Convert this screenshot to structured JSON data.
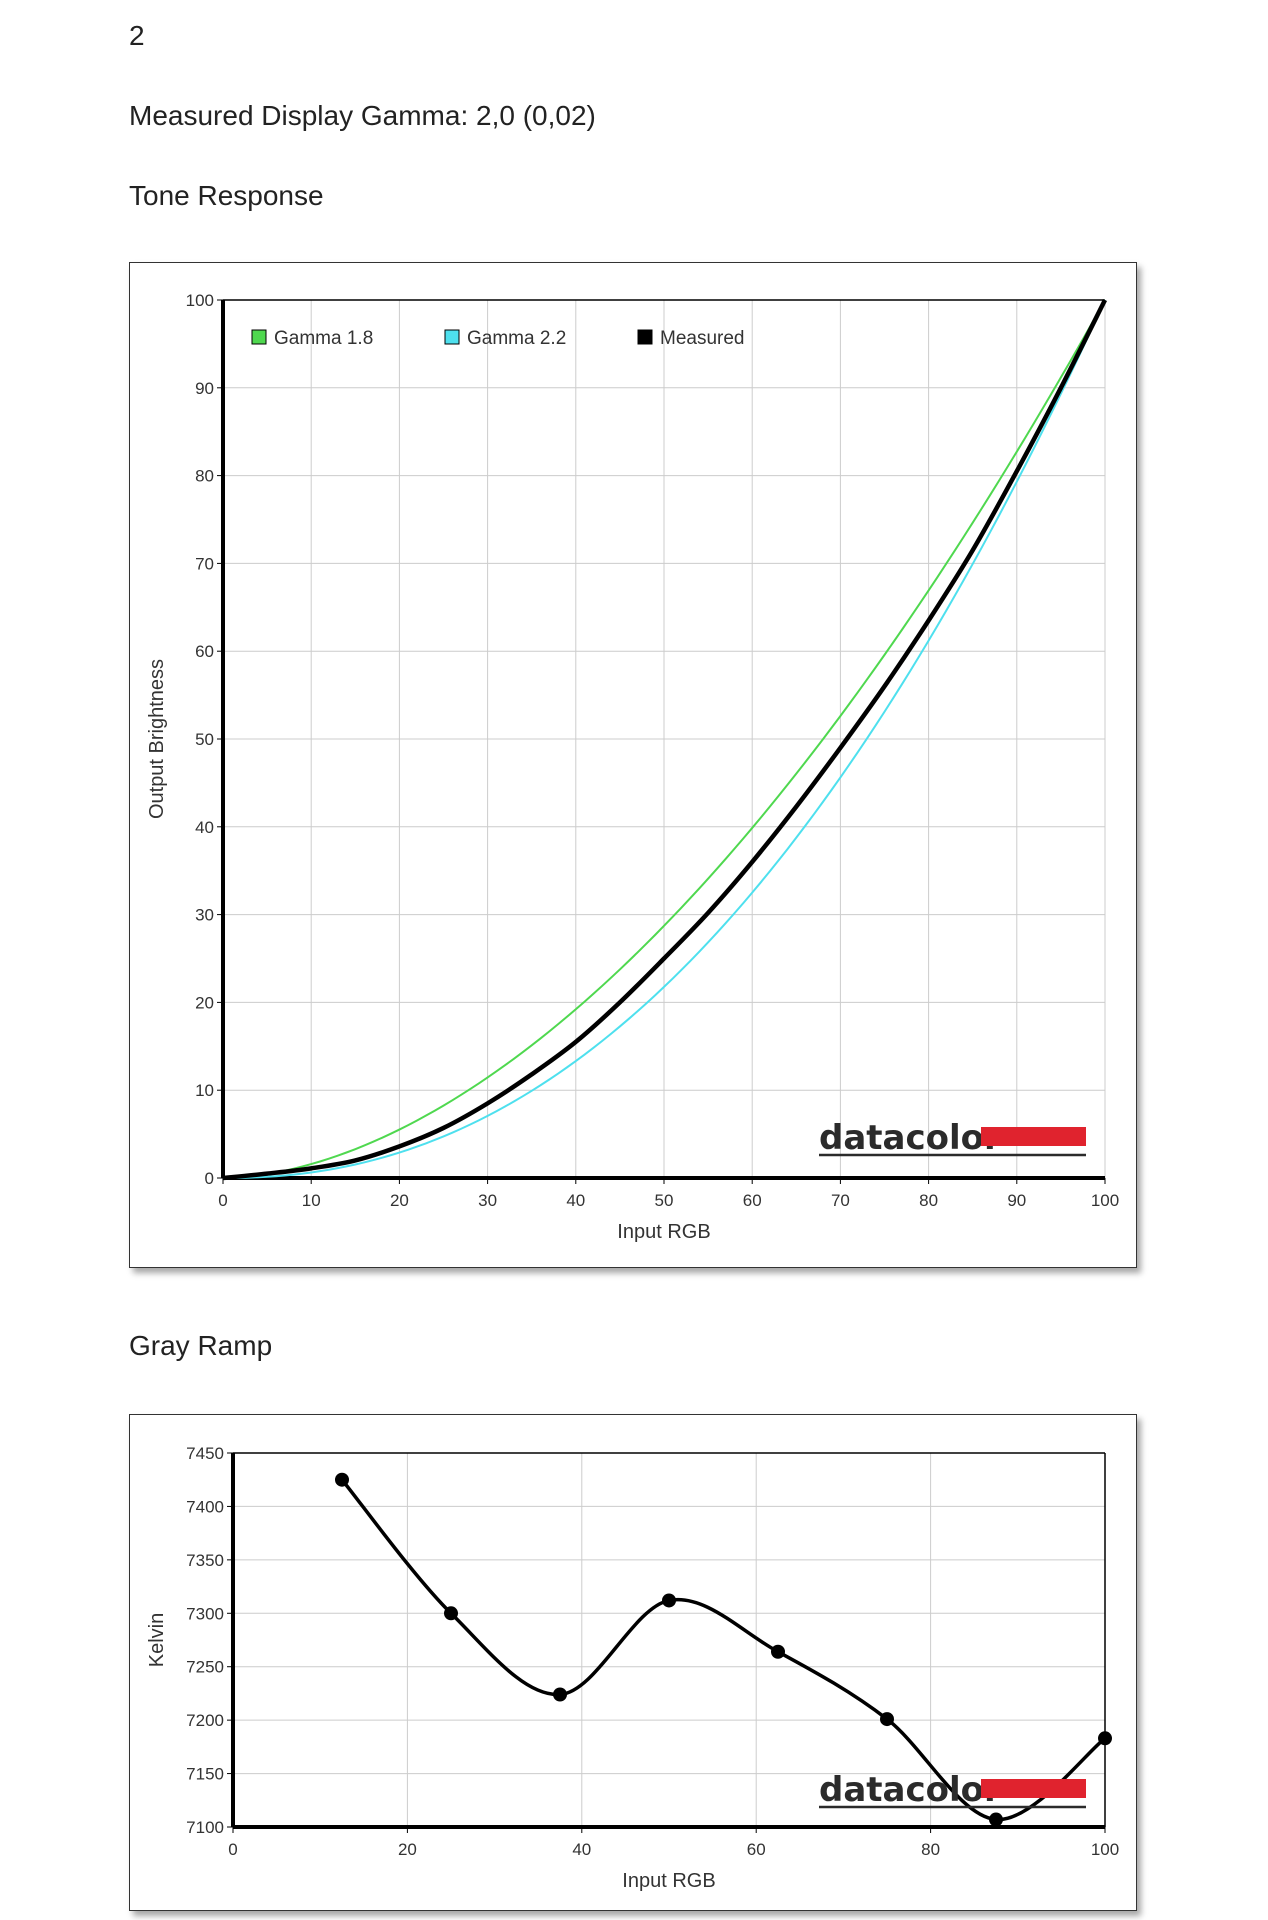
{
  "page": {
    "number": "2",
    "gamma_text": "Measured Display Gamma: 2,0 (0,02)",
    "tone_heading": "Tone Response",
    "gray_heading": "Gray Ramp",
    "logo_text": "datacolor"
  },
  "colors": {
    "gamma18": "#4fd84f",
    "gamma22": "#4ee0ee",
    "measured": "#000000",
    "logo_red": "#e0232e"
  },
  "chart_data": [
    {
      "type": "line",
      "xlabel": "Input RGB",
      "ylabel": "Output Brightness",
      "xlim": [
        0,
        100
      ],
      "ylim": [
        0,
        100
      ],
      "xticks": [
        0,
        10,
        20,
        30,
        40,
        50,
        60,
        70,
        80,
        90,
        100
      ],
      "yticks": [
        0,
        10,
        20,
        30,
        40,
        50,
        60,
        70,
        80,
        90,
        100
      ],
      "grid": true,
      "legend_position": "top-left",
      "series": [
        {
          "name": "Gamma 1.8",
          "color": "#4fd84f",
          "gamma": 1.8
        },
        {
          "name": "Gamma 2.2",
          "color": "#4ee0ee",
          "gamma": 2.2
        },
        {
          "name": "Measured",
          "color": "#000000",
          "x": [
            0,
            5,
            10,
            15,
            20,
            25,
            30,
            35,
            40,
            45,
            50,
            55,
            60,
            65,
            70,
            75,
            80,
            85,
            90,
            95,
            100
          ],
          "y": [
            0,
            0.5,
            1.1,
            2.0,
            3.6,
            5.7,
            8.5,
            11.8,
            15.5,
            20.0,
            25.0,
            30.2,
            36.0,
            42.3,
            49.0,
            56.0,
            63.5,
            71.5,
            80.5,
            90.0,
            100
          ]
        }
      ]
    },
    {
      "type": "line",
      "xlabel": "Input RGB",
      "ylabel": "Kelvin",
      "xlim": [
        0,
        100
      ],
      "ylim": [
        7100,
        7450
      ],
      "xticks": [
        0,
        20,
        40,
        60,
        80,
        100
      ],
      "yticks": [
        7100,
        7150,
        7200,
        7250,
        7300,
        7350,
        7400,
        7450
      ],
      "grid": true,
      "series": [
        {
          "color": "#000000",
          "x": [
            12.5,
            25,
            37.5,
            50,
            62.5,
            75,
            87.5,
            100
          ],
          "y": [
            7425,
            7300,
            7224,
            7312,
            7264,
            7201,
            7107,
            7183
          ]
        }
      ]
    }
  ]
}
